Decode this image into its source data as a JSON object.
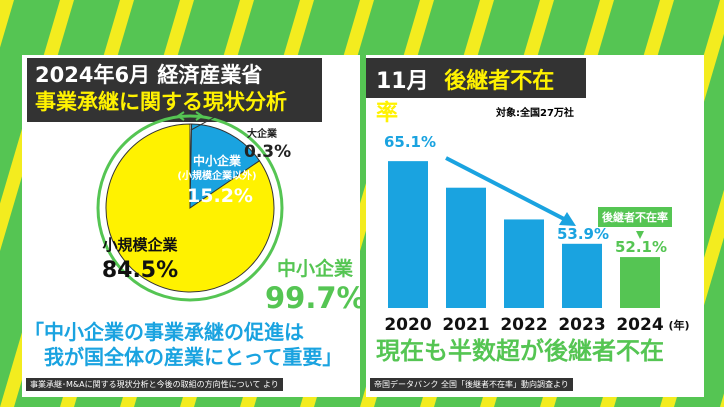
{
  "colors": {
    "background": "#55c553",
    "stripe": "#f3ec1f",
    "yellow": "#fff200",
    "blue": "#1aa3e0",
    "green": "#55c553",
    "dark": "#333333"
  },
  "left": {
    "title_line1": "2024年6月  経済産業省",
    "title_line2": "事業承継に関する現状分析",
    "quote_line1": "「中小企業の事業承継の促進は",
    "quote_line2": "　我が国全体の産業にとって重要」",
    "source": "事業承継･M&Aに関する現状分析と今後の取組の方向性について より",
    "sme_total_label": "中小企業",
    "sme_total_value": "99.7%"
  },
  "right": {
    "title_month": "11月",
    "title_main": "後継者不在率",
    "subtitle": "対象:全国27万社",
    "callout": "後継者不在率",
    "year_unit": "(年)",
    "conclusion": "現在も半数超が後継者不在",
    "source": "帝国データバンク 全国「後継者不在率」動向調査より"
  },
  "chart_data": [
    {
      "type": "pie",
      "slices": [
        {
          "label": "大企業",
          "value": 0.3,
          "value_label": "0.3%",
          "color": "#ffffff"
        },
        {
          "label": "中小企業",
          "sublabel": "(小規模企業以外)",
          "value": 15.2,
          "value_label": "15.2%",
          "color": "#1aa3e0"
        },
        {
          "label": "小規模企業",
          "value": 84.5,
          "value_label": "84.5%",
          "color": "#fff200"
        }
      ]
    },
    {
      "type": "bar",
      "categories": [
        "2020",
        "2021",
        "2022",
        "2023",
        "2024"
      ],
      "values": [
        65.1,
        61.5,
        57.2,
        53.9,
        52.1
      ],
      "data_labels": [
        "65.1%",
        "",
        "",
        "53.9%",
        "52.1%"
      ],
      "colors": [
        "#1aa3e0",
        "#1aa3e0",
        "#1aa3e0",
        "#1aa3e0",
        "#55c553"
      ],
      "xlabel": "(年)",
      "ylim": [
        45.2,
        66
      ]
    }
  ]
}
